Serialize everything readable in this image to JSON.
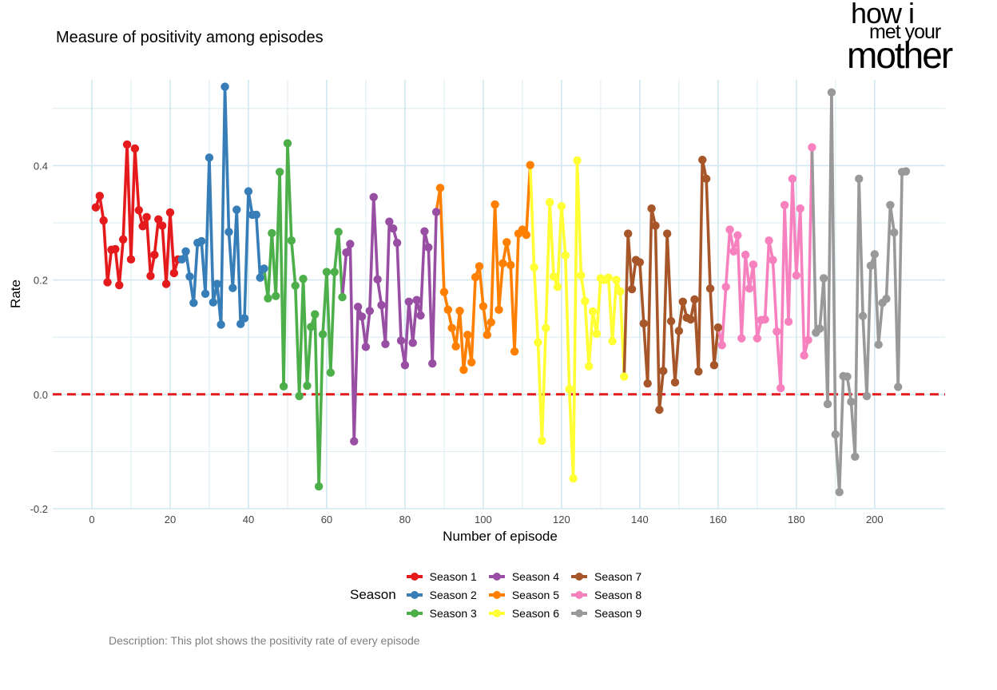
{
  "title": "Measure of positivity among episodes",
  "caption": "Description: This plot shows the positivity rate of every episode",
  "logo": {
    "line1": "how i",
    "line2": "met your",
    "line3": "mother"
  },
  "chart_data": {
    "type": "line",
    "title": "Measure of positivity among episodes",
    "xlabel": "Number of episode",
    "ylabel": "Rate",
    "xlim": [
      -10,
      218
    ],
    "ylim": [
      -0.2,
      0.55
    ],
    "xticks": [
      0,
      20,
      40,
      60,
      80,
      100,
      120,
      140,
      160,
      180,
      200
    ],
    "yticks": [
      -0.2,
      0.0,
      0.2,
      0.4
    ],
    "ytick_labels": [
      "-0.2",
      "0.0",
      "0.2",
      "0.4"
    ],
    "grid": true,
    "reference_line": {
      "y": 0,
      "style": "dashed",
      "color": "#e41a1c"
    },
    "legend": {
      "title": "Season",
      "position": "bottom"
    },
    "series": [
      {
        "name": "Season 1",
        "color": "#e41a1c",
        "x": [
          1,
          2,
          3,
          4,
          5,
          6,
          7,
          8,
          9,
          10,
          11,
          12,
          13,
          14,
          15,
          16,
          17,
          18,
          19,
          20,
          21,
          22
        ],
        "y": [
          0.327,
          0.347,
          0.304,
          0.196,
          0.253,
          0.254,
          0.191,
          0.271,
          0.437,
          0.236,
          0.43,
          0.322,
          0.294,
          0.31,
          0.207,
          0.244,
          0.306,
          0.295,
          0.193,
          0.318,
          0.212,
          0.236
        ]
      },
      {
        "name": "Season 2",
        "color": "#377eb8",
        "x": [
          23,
          24,
          25,
          26,
          27,
          28,
          29,
          30,
          31,
          32,
          33,
          34,
          35,
          36,
          37,
          38,
          39,
          40,
          41,
          42,
          43,
          44
        ],
        "y": [
          0.236,
          0.25,
          0.206,
          0.16,
          0.265,
          0.268,
          0.176,
          0.414,
          0.161,
          0.193,
          0.122,
          0.538,
          0.284,
          0.186,
          0.323,
          0.123,
          0.133,
          0.355,
          0.314,
          0.314,
          0.204,
          0.22
        ]
      },
      {
        "name": "Season 3",
        "color": "#4daf4a",
        "x": [
          45,
          46,
          47,
          48,
          49,
          50,
          51,
          52,
          53,
          54,
          55,
          56,
          57,
          58,
          59,
          60,
          61,
          62,
          63,
          64
        ],
        "y": [
          0.168,
          0.282,
          0.172,
          0.389,
          0.014,
          0.439,
          0.269,
          0.19,
          -0.003,
          0.202,
          0.015,
          0.118,
          0.14,
          -0.161,
          0.105,
          0.214,
          0.038,
          0.214,
          0.284,
          0.17
        ]
      },
      {
        "name": "Season 4",
        "color": "#984ea3",
        "x": [
          65,
          66,
          67,
          68,
          69,
          70,
          71,
          72,
          73,
          74,
          75,
          76,
          77,
          78,
          79,
          80,
          81,
          82,
          83,
          84,
          85,
          86,
          87,
          88
        ],
        "y": [
          0.248,
          0.263,
          -0.082,
          0.153,
          0.136,
          0.083,
          0.146,
          0.345,
          0.201,
          0.156,
          0.088,
          0.302,
          0.29,
          0.265,
          0.094,
          0.051,
          0.162,
          0.09,
          0.165,
          0.138,
          0.285,
          0.257,
          0.054,
          0.319
        ]
      },
      {
        "name": "Season 5",
        "color": "#ff7f00",
        "x": [
          89,
          90,
          91,
          92,
          93,
          94,
          95,
          96,
          97,
          98,
          99,
          100,
          101,
          102,
          103,
          104,
          105,
          106,
          107,
          108,
          109,
          110,
          111,
          112
        ],
        "y": [
          0.361,
          0.179,
          0.148,
          0.116,
          0.084,
          0.146,
          0.043,
          0.104,
          0.056,
          0.205,
          0.224,
          0.154,
          0.104,
          0.126,
          0.332,
          0.148,
          0.229,
          0.266,
          0.226,
          0.075,
          0.281,
          0.288,
          0.279,
          0.401
        ]
      },
      {
        "name": "Season 6",
        "color": "#ffff33",
        "x": [
          113,
          114,
          115,
          116,
          117,
          118,
          119,
          120,
          121,
          122,
          123,
          124,
          125,
          126,
          127,
          128,
          129,
          130,
          131,
          132,
          133,
          134,
          135,
          136
        ],
        "y": [
          0.222,
          0.091,
          -0.081,
          0.116,
          0.336,
          0.206,
          0.188,
          0.329,
          0.243,
          0.009,
          -0.147,
          0.409,
          0.208,
          0.163,
          0.049,
          0.145,
          0.106,
          0.203,
          0.2,
          0.204,
          0.093,
          0.2,
          0.18,
          0.031
        ]
      },
      {
        "name": "Season 7",
        "color": "#a65628",
        "x": [
          137,
          138,
          139,
          140,
          141,
          142,
          143,
          144,
          145,
          146,
          147,
          148,
          149,
          150,
          151,
          152,
          153,
          154,
          155,
          156,
          157,
          158,
          159,
          160
        ],
        "y": [
          0.281,
          0.184,
          0.235,
          0.231,
          0.124,
          0.019,
          0.325,
          0.295,
          -0.027,
          0.041,
          0.281,
          0.128,
          0.021,
          0.111,
          0.162,
          0.134,
          0.131,
          0.166,
          0.04,
          0.41,
          0.377,
          0.185,
          0.051,
          0.117
        ]
      },
      {
        "name": "Season 8",
        "color": "#f781bf",
        "x": [
          161,
          162,
          163,
          164,
          165,
          166,
          167,
          168,
          169,
          170,
          171,
          172,
          173,
          174,
          175,
          176,
          177,
          178,
          179,
          180,
          181,
          182,
          183,
          184
        ],
        "y": [
          0.086,
          0.188,
          0.288,
          0.25,
          0.278,
          0.098,
          0.244,
          0.185,
          0.227,
          0.098,
          0.13,
          0.131,
          0.269,
          0.235,
          0.11,
          0.011,
          0.331,
          0.127,
          0.377,
          0.208,
          0.325,
          0.068,
          0.095,
          0.432
        ]
      },
      {
        "name": "Season 9",
        "color": "#999999",
        "x": [
          185,
          186,
          187,
          188,
          189,
          190,
          191,
          192,
          193,
          194,
          195,
          196,
          197,
          198,
          199,
          200,
          201,
          202,
          203,
          204,
          205,
          206,
          207,
          208
        ],
        "y": [
          0.108,
          0.115,
          0.203,
          -0.017,
          0.528,
          -0.07,
          -0.171,
          0.032,
          0.031,
          -0.013,
          -0.109,
          0.377,
          0.137,
          -0.003,
          0.225,
          0.245,
          0.087,
          0.16,
          0.167,
          0.331,
          0.283,
          0.013,
          0.389,
          0.39
        ]
      }
    ]
  }
}
